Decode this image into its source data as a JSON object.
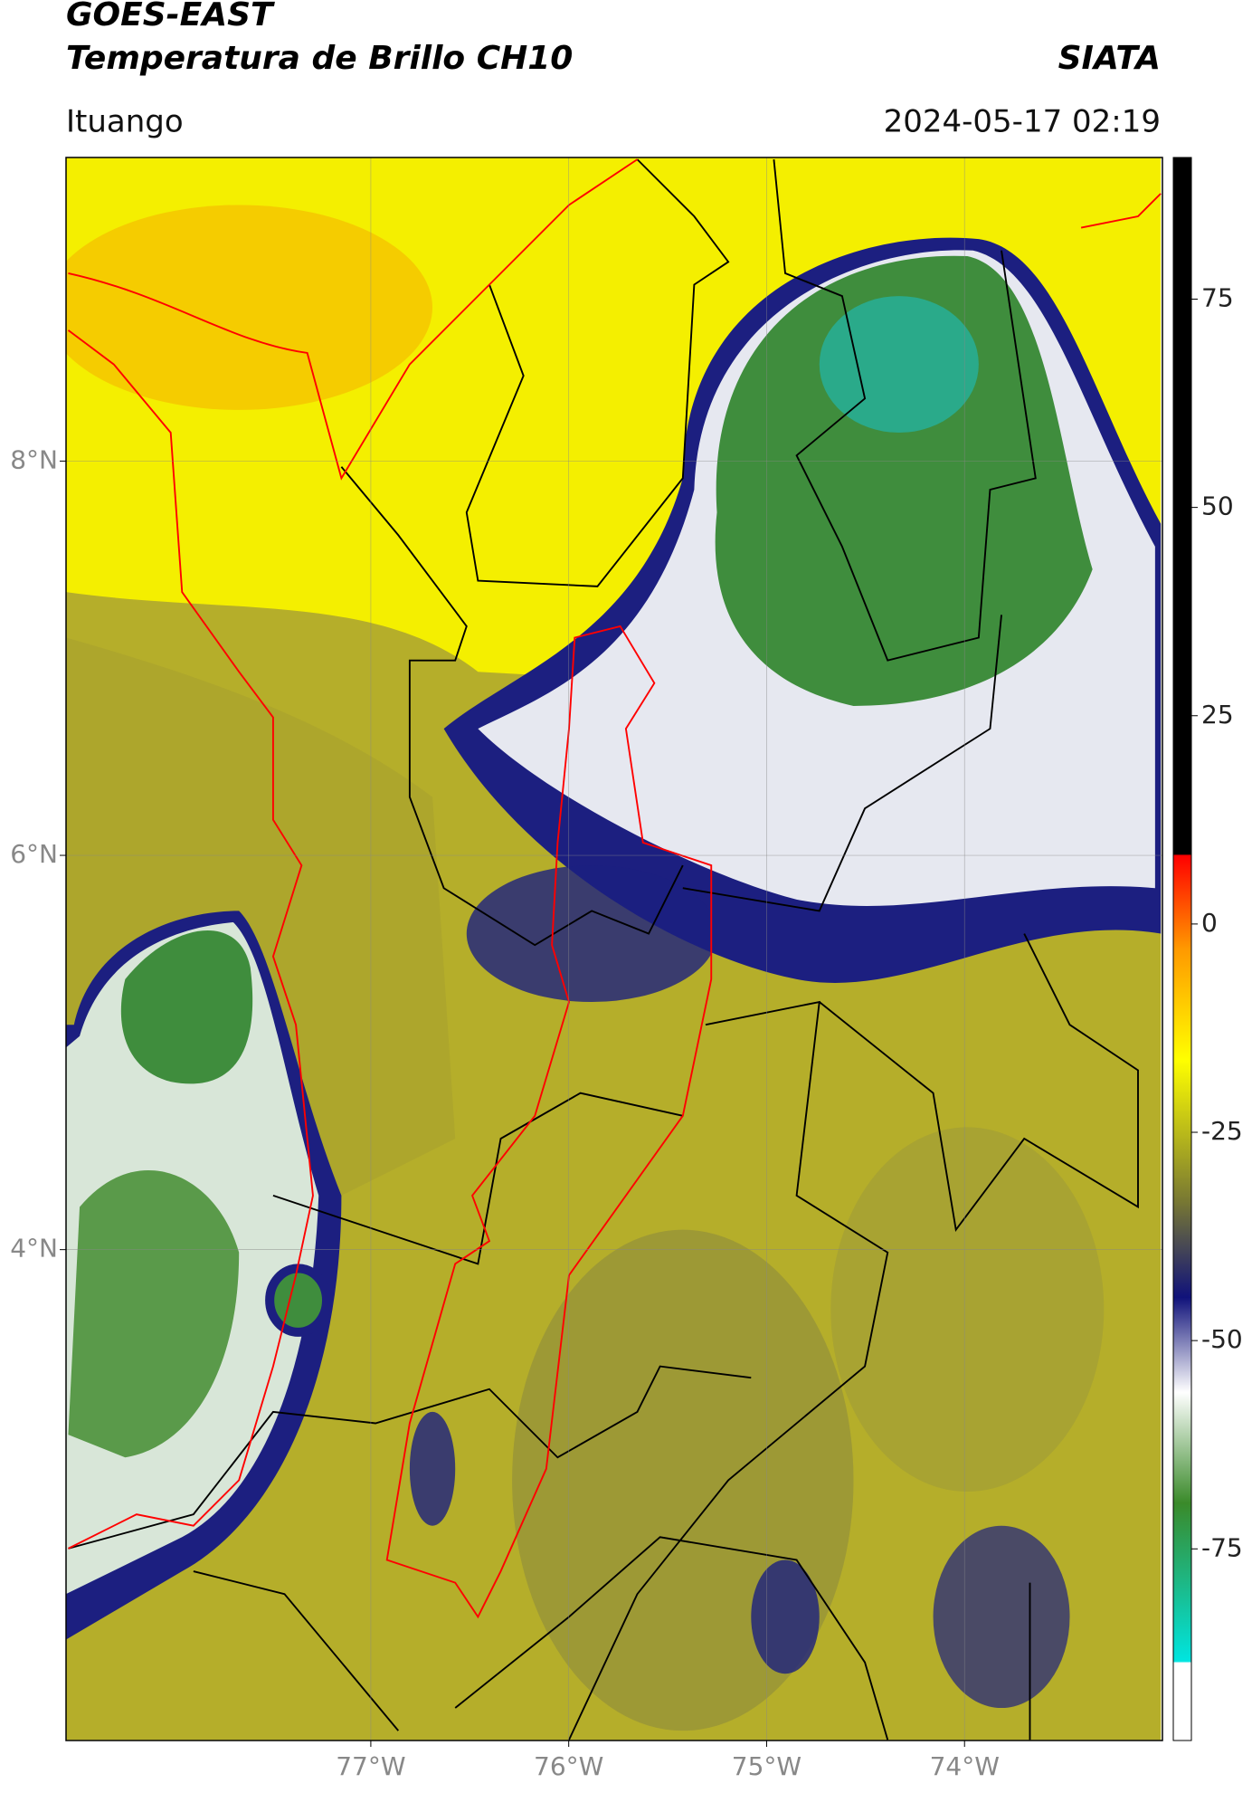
{
  "chart_data": {
    "type": "map",
    "title": "GOES-EAST",
    "subtitle": "Temperatura de Brillo CH10",
    "source": "SIATA",
    "location": "Ituango",
    "datetime": "2024-05-17 02:19",
    "xlim": [
      -78.54,
      -73.0
    ],
    "ylim": [
      1.51,
      9.54
    ],
    "xticks": [
      {
        "value": -77,
        "label": "77°W"
      },
      {
        "value": -76,
        "label": "76°W"
      },
      {
        "value": -75,
        "label": "75°W"
      },
      {
        "value": -74,
        "label": "74°W"
      }
    ],
    "yticks": [
      {
        "value": 4,
        "label": "4°N"
      },
      {
        "value": 6,
        "label": "6°N"
      },
      {
        "value": 8,
        "label": "8°N"
      }
    ],
    "grid": true,
    "colorbar": {
      "lim": [
        -98,
        92
      ],
      "ticks": [
        -75,
        -50,
        -25,
        0,
        25,
        50,
        75
      ]
    }
  }
}
